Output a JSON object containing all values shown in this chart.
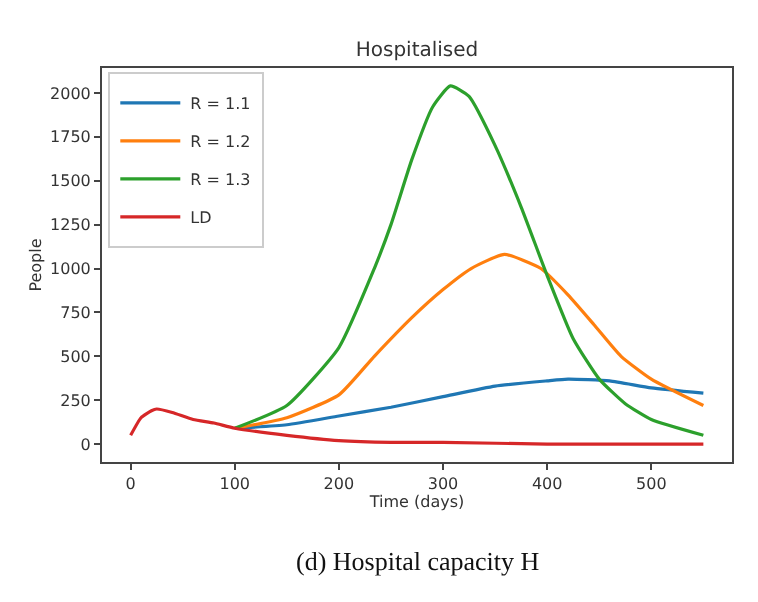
{
  "chart_data": {
    "type": "line",
    "title": "Hospitalised",
    "xlabel": "Time (days)",
    "ylabel": "People",
    "annotations": [
      "(d) Hospital capacity H"
    ],
    "xlim": [
      -27.5,
      577.5
    ],
    "xticks": [
      0,
      100,
      200,
      300,
      400,
      500
    ],
    "ylim": [
      -102,
      2142
    ],
    "yticks": [
      0,
      250,
      500,
      750,
      1000,
      1250,
      1500,
      1750,
      2000
    ],
    "legend": "top left",
    "line_style": "solid",
    "marker": "none",
    "series": [
      {
        "name": "R = 1.1",
        "color": "#1f77b4",
        "x": [
          100,
          150,
          200,
          250,
          300,
          350,
          400,
          420,
          460,
          500,
          550
        ],
        "values": [
          90,
          110,
          160,
          210,
          270,
          330,
          360,
          370,
          360,
          320,
          290
        ]
      },
      {
        "name": "R = 1.2",
        "color": "#ff7f0e",
        "x": [
          100,
          150,
          200,
          234,
          270,
          300,
          327,
          359,
          394,
          420,
          445,
          471,
          500,
          550
        ],
        "values": [
          90,
          150,
          280,
          500,
          720,
          880,
          1000,
          1080,
          1000,
          850,
          680,
          500,
          370,
          220
        ]
      },
      {
        "name": "R = 1.3",
        "color": "#2ca02c",
        "x": [
          100,
          150,
          200,
          234,
          250,
          270,
          290,
          307,
          325,
          350,
          375,
          400,
          425,
          450,
          475,
          500,
          550
        ],
        "values": [
          90,
          220,
          550,
          1000,
          1250,
          1620,
          1920,
          2040,
          1980,
          1700,
          1350,
          960,
          600,
          370,
          230,
          140,
          50
        ]
      },
      {
        "name": "LD",
        "color": "#d62728",
        "x": [
          0,
          10,
          20,
          25,
          40,
          60,
          80,
          100,
          150,
          200,
          250,
          300,
          400,
          550
        ],
        "values": [
          50,
          150,
          190,
          200,
          180,
          140,
          120,
          90,
          50,
          20,
          10,
          10,
          0,
          0
        ]
      }
    ]
  }
}
